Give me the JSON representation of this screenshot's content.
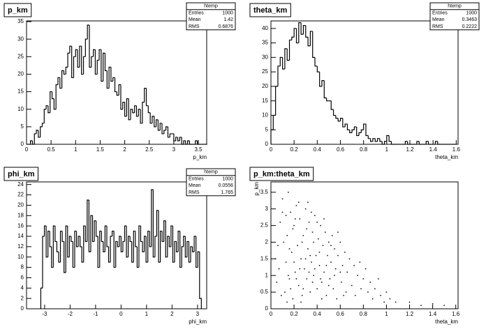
{
  "chart_data": [
    {
      "type": "histogram",
      "title": "p_km",
      "xlabel": "p_km",
      "bins": [
        0,
        0.04,
        0.08,
        0.12,
        0.16,
        0.2,
        0.24,
        0.28,
        0.32,
        0.36,
        0.4,
        0.44,
        0.48,
        0.52,
        0.56,
        0.6,
        0.64,
        0.68,
        0.72,
        0.76,
        0.8,
        0.84,
        0.88,
        0.92,
        0.96,
        1,
        1.04,
        1.08,
        1.12,
        1.16,
        1.2,
        1.24,
        1.28,
        1.32,
        1.36,
        1.4,
        1.44,
        1.48,
        1.52,
        1.56,
        1.6,
        1.64,
        1.68,
        1.72,
        1.76,
        1.8,
        1.84,
        1.88,
        1.92,
        1.96,
        2,
        2.04,
        2.08,
        2.12,
        2.16,
        2.2,
        2.24,
        2.28,
        2.32,
        2.36,
        2.4,
        2.44,
        2.48,
        2.52,
        2.56,
        2.6,
        2.64,
        2.68,
        2.72,
        2.76,
        2.8,
        2.84,
        2.88,
        2.92,
        2.96,
        3,
        3.04,
        3.08,
        3.12,
        3.16,
        3.2,
        3.24,
        3.28,
        3.32,
        3.36,
        3.4,
        3.44,
        3.48,
        3.52,
        3.56,
        3.6,
        3.64,
        3.68
      ],
      "values": [
        0,
        0,
        1,
        0,
        3,
        4,
        2,
        5,
        6,
        10,
        11,
        9,
        15,
        13,
        10,
        17,
        19,
        16,
        21,
        20,
        22,
        26,
        28,
        19,
        25,
        27,
        22,
        28,
        20,
        25,
        30,
        34,
        22,
        25,
        27,
        20,
        24,
        27,
        18,
        26,
        21,
        16,
        22,
        18,
        19,
        15,
        14,
        17,
        10,
        12,
        8,
        13,
        7,
        10,
        9,
        11,
        8,
        10,
        6,
        12,
        16,
        11,
        9,
        6,
        8,
        5,
        7,
        4,
        6,
        3,
        4,
        5,
        2,
        3,
        3,
        1,
        2,
        1,
        2,
        0,
        1,
        0,
        1,
        0,
        0,
        0,
        1,
        0,
        0,
        0,
        0,
        0
      ],
      "xlim": [
        0,
        3.67
      ],
      "ylim": [
        0,
        35.2
      ],
      "xticks": [
        0,
        0.5,
        1,
        1.5,
        2,
        2.5,
        3,
        3.5
      ],
      "yticks": [
        0,
        5,
        10,
        15,
        20,
        25,
        30,
        35
      ],
      "color": "#000000",
      "stats": {
        "title": "htemp",
        "rows": [
          [
            "Entries",
            1000
          ],
          [
            "Mean",
            1.42
          ],
          [
            "RMS",
            0.6876
          ]
        ]
      }
    },
    {
      "type": "histogram",
      "title": "theta_km",
      "xlabel": "theta_km",
      "bins": [
        0,
        0.02,
        0.04,
        0.06,
        0.08,
        0.1,
        0.12,
        0.14,
        0.16,
        0.18,
        0.2,
        0.22,
        0.24,
        0.26,
        0.28,
        0.3,
        0.32,
        0.34,
        0.36,
        0.38,
        0.4,
        0.42,
        0.44,
        0.46,
        0.48,
        0.5,
        0.52,
        0.54,
        0.56,
        0.58,
        0.6,
        0.62,
        0.64,
        0.66,
        0.68,
        0.7,
        0.72,
        0.74,
        0.76,
        0.78,
        0.8,
        0.82,
        0.84,
        0.86,
        0.88,
        0.9,
        0.92,
        0.94,
        0.96,
        0.98,
        1,
        1.02,
        1.04,
        1.06,
        1.08,
        1.1,
        1.12,
        1.14,
        1.16,
        1.18,
        1.2,
        1.22,
        1.24,
        1.26,
        1.28,
        1.3,
        1.32,
        1.34,
        1.36,
        1.38,
        1.4,
        1.42,
        1.44,
        1.46,
        1.48,
        1.5,
        1.52,
        1.54,
        1.56,
        1.58,
        1.6
      ],
      "values": [
        5,
        10,
        20,
        27,
        30,
        26,
        33,
        29,
        36,
        37,
        40,
        35,
        42,
        38,
        41,
        37,
        34,
        39,
        30,
        27,
        25,
        20,
        22,
        16,
        15,
        15,
        12,
        10,
        9,
        8,
        9,
        6,
        7,
        5,
        4,
        5,
        6,
        3,
        4,
        5,
        7,
        3,
        2,
        1,
        2,
        1,
        2,
        1,
        0,
        1,
        3,
        1,
        0,
        0,
        0,
        0,
        0,
        0,
        1,
        0,
        0,
        0,
        0,
        1,
        0,
        0,
        0,
        1,
        0,
        0,
        0,
        1,
        0,
        0,
        0,
        0,
        0,
        0,
        0,
        0
      ],
      "xlim": [
        0,
        1.616
      ],
      "ylim": [
        0,
        42.6
      ],
      "xticks": [
        0,
        0.2,
        0.4,
        0.6,
        0.8,
        1,
        1.2,
        1.4,
        1.6
      ],
      "yticks": [
        0,
        5,
        10,
        15,
        20,
        25,
        30,
        35,
        40
      ],
      "color": "#000000",
      "stats": {
        "title": "htemp",
        "rows": [
          [
            "Entries",
            1000
          ],
          [
            "Mean",
            0.3463
          ],
          [
            "RMS",
            0.2222
          ]
        ]
      }
    },
    {
      "type": "histogram",
      "title": "phi_km",
      "xlabel": "phi_km",
      "bins": [
        -3.15,
        -3.08,
        -3.01,
        -2.94,
        -2.87,
        -2.8,
        -2.73,
        -2.66,
        -2.59,
        -2.52,
        -2.45,
        -2.38,
        -2.31,
        -2.24,
        -2.17,
        -2.1,
        -2.03,
        -1.96,
        -1.89,
        -1.82,
        -1.75,
        -1.68,
        -1.61,
        -1.54,
        -1.47,
        -1.4,
        -1.33,
        -1.26,
        -1.19,
        -1.12,
        -1.05,
        -0.98,
        -0.91,
        -0.84,
        -0.77,
        -0.7,
        -0.63,
        -0.56,
        -0.49,
        -0.42,
        -0.35,
        -0.28,
        -0.21,
        -0.14,
        -0.07,
        0,
        0.07,
        0.14,
        0.21,
        0.28,
        0.35,
        0.42,
        0.49,
        0.56,
        0.63,
        0.7,
        0.77,
        0.84,
        0.91,
        0.98,
        1.05,
        1.12,
        1.19,
        1.26,
        1.33,
        1.4,
        1.47,
        1.54,
        1.61,
        1.68,
        1.75,
        1.82,
        1.89,
        1.96,
        2.03,
        2.1,
        2.17,
        2.24,
        2.31,
        2.38,
        2.45,
        2.52,
        2.59,
        2.66,
        2.73,
        2.8,
        2.87,
        2.94,
        3.01,
        3.08,
        3.15
      ],
      "values": [
        4,
        14,
        16,
        10,
        15,
        12,
        8,
        16,
        13,
        11,
        9,
        15,
        13,
        7,
        16,
        10,
        14,
        13,
        8,
        15,
        12,
        14,
        12,
        9,
        16,
        13,
        21,
        11,
        18,
        13,
        17,
        14,
        8,
        15,
        13,
        11,
        16,
        12,
        9,
        14,
        15,
        8,
        13,
        12,
        14,
        11,
        13,
        16,
        10,
        14,
        13,
        9,
        15,
        12,
        8,
        16,
        13,
        11,
        14,
        9,
        15,
        12,
        23,
        10,
        14,
        19,
        9,
        15,
        13,
        17,
        10,
        14,
        12,
        16,
        9,
        13,
        11,
        15,
        8,
        12,
        14,
        10,
        13,
        9,
        12,
        11,
        14,
        8,
        11,
        2
      ],
      "xlim": [
        -3.71,
        3.36
      ],
      "ylim": [
        0,
        24.5
      ],
      "xticks": [
        -3,
        -2,
        -1,
        0,
        1,
        2,
        3
      ],
      "yticks": [
        0,
        2,
        4,
        6,
        8,
        10,
        12,
        14,
        16,
        18,
        20,
        22,
        24
      ],
      "color": "#000000",
      "stats": {
        "title": "htemp",
        "rows": [
          [
            "Entries",
            1000
          ],
          [
            "Mean",
            0.0556
          ],
          [
            "RMS",
            1.765
          ]
        ]
      }
    },
    {
      "type": "scatter",
      "title": "p_km:theta_km",
      "xlabel": "theta_km",
      "ylabel": "p_km",
      "x": [
        0.05,
        0.06,
        0.08,
        0.1,
        0.12,
        0.13,
        0.14,
        0.15,
        0.16,
        0.17,
        0.18,
        0.19,
        0.2,
        0.21,
        0.22,
        0.23,
        0.24,
        0.25,
        0.26,
        0.27,
        0.28,
        0.29,
        0.3,
        0.31,
        0.32,
        0.33,
        0.34,
        0.35,
        0.36,
        0.37,
        0.38,
        0.39,
        0.4,
        0.41,
        0.42,
        0.43,
        0.44,
        0.45,
        0.46,
        0.47,
        0.48,
        0.49,
        0.5,
        0.51,
        0.52,
        0.53,
        0.54,
        0.55,
        0.56,
        0.57,
        0.58,
        0.6,
        0.61,
        0.62,
        0.64,
        0.65,
        0.66,
        0.68,
        0.7,
        0.72,
        0.73,
        0.75,
        0.77,
        0.78,
        0.8,
        0.82,
        0.84,
        0.86,
        0.88,
        0.9,
        0.93,
        0.95,
        0.98,
        1,
        1.03,
        1.08,
        1.2,
        1.3,
        1.4,
        1.5,
        0.07,
        0.09,
        0.11,
        0.13,
        0.15,
        0.17,
        0.19,
        0.2,
        0.22,
        0.24,
        0.25,
        0.27,
        0.28,
        0.3,
        0.31,
        0.33,
        0.35,
        0.36,
        0.38,
        0.4,
        0.42,
        0.44,
        0.46,
        0.48,
        0.5,
        0.52,
        0.55,
        0.58,
        0.6,
        0.63,
        0.04,
        0.1,
        0.14,
        0.16,
        0.21,
        0.26,
        0.32,
        0.34,
        0.37,
        0.43
      ],
      "y": [
        0.8,
        1.9,
        2.6,
        3.3,
        0.5,
        1.4,
        2.2,
        3.5,
        0.9,
        2.9,
        1.7,
        0.3,
        2.5,
        1.1,
        3.1,
        1.9,
        0.7,
        2.7,
        1.5,
        0.4,
        2.2,
        1.2,
        3,
        0.9,
        1.8,
        2.6,
        0.5,
        1.4,
        2.3,
        1,
        2.8,
        1.6,
        0.6,
        2.1,
        1.3,
        2.5,
        0.8,
        1.9,
        1.1,
        2.3,
        0.4,
        1.6,
        2,
        0.9,
        1.4,
        2.2,
        0.6,
        1.8,
        1.2,
        0.3,
        1.6,
        2,
        0.8,
        1.3,
        1.7,
        0.5,
        1.1,
        1.5,
        0.7,
        1.3,
        0.4,
        1,
        1.4,
        0.6,
        0.9,
        1.2,
        0.5,
        0.8,
        0.3,
        0.6,
        0.9,
        0.4,
        0.2,
        0.5,
        0.3,
        0.2,
        0.2,
        0.1,
        0.15,
        0.1,
        1.2,
        0.4,
        2,
        2.8,
        1,
        0.6,
        2.4,
        1.4,
        0.9,
        3.2,
        1.2,
        2,
        0.6,
        1.5,
        2.4,
        1.1,
        2.9,
        0.8,
        1.2,
        2.6,
        1.7,
        0.3,
        2.7,
        1.3,
        0.7,
        1.9,
        1,
        2.3,
        1.1,
        0.4,
        1.5,
        2.9,
        0.2,
        1.8,
        2.7,
        0.2,
        3.2,
        1.6,
        2,
        0.9
      ],
      "xlim": [
        0,
        1.62
      ],
      "ylim": [
        0,
        3.81
      ],
      "xticks": [
        0,
        0.2,
        0.4,
        0.6,
        0.8,
        1,
        1.2,
        1.4,
        1.6
      ],
      "yticks": [
        0,
        0.5,
        1,
        1.5,
        2,
        2.5,
        3,
        3.5
      ],
      "color": "#000000"
    }
  ]
}
